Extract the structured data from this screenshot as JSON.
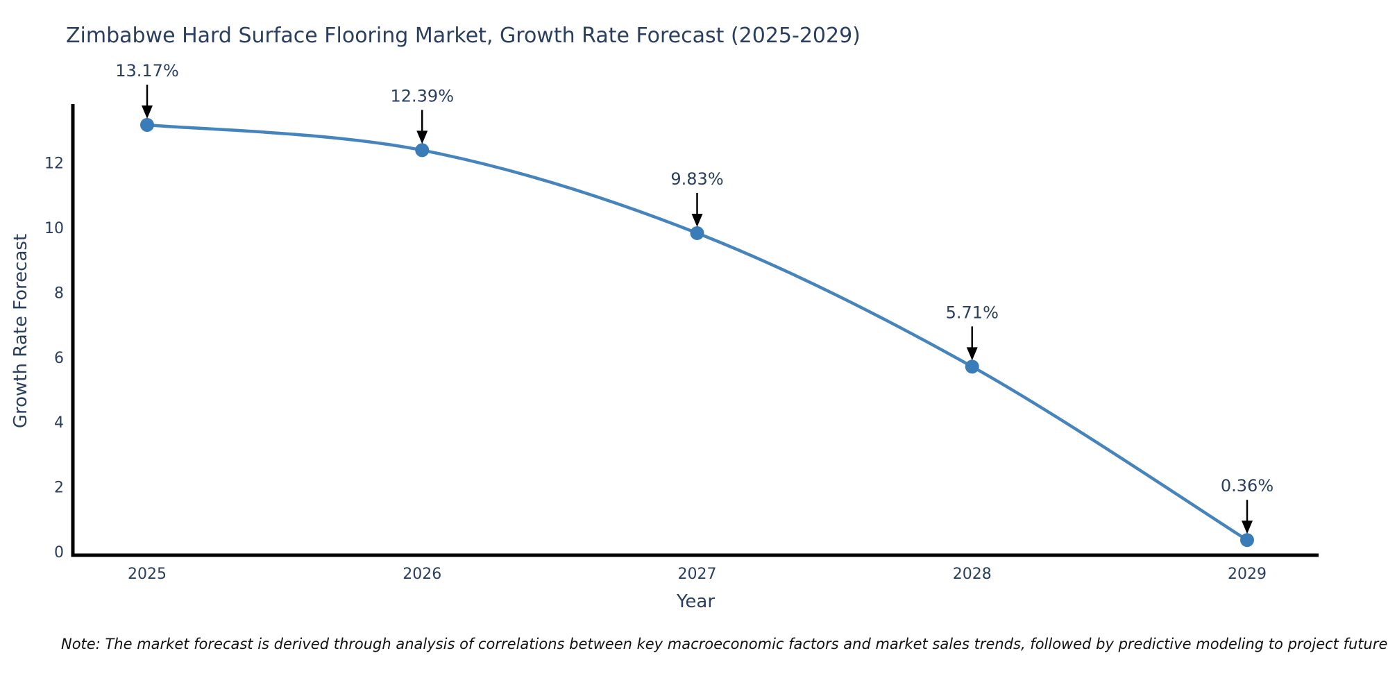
{
  "chart_data": {
    "type": "line",
    "title": "Zimbabwe Hard Surface Flooring Market, Growth Rate Forecast (2025-2029)",
    "xlabel": "Year",
    "ylabel": "Growth Rate Forecast",
    "x": [
      2025,
      2026,
      2027,
      2028,
      2029
    ],
    "y": [
      13.17,
      12.39,
      9.83,
      5.71,
      0.36
    ],
    "point_labels": [
      "13.17%",
      "12.39%",
      "9.83%",
      "5.71%",
      "0.36%"
    ],
    "x_tick_labels": [
      "2025",
      "2026",
      "2027",
      "2028",
      "2029"
    ],
    "y_ticks": [
      0,
      2,
      4,
      6,
      8,
      10,
      12
    ],
    "ylim": [
      0,
      13.8
    ],
    "curve": "spline",
    "grid": false,
    "legend_position": "none",
    "colors": {
      "line": "#4684bd",
      "marker": "#3a7cb8",
      "axis": "#000000",
      "text": "#2a3f5f",
      "arrow": "#000000",
      "background": "#ffffff"
    }
  },
  "note": "Note: The market forecast is derived through analysis of correlations between key macroeconomic factors and market sales trends, followed by predictive modeling to project future sales."
}
